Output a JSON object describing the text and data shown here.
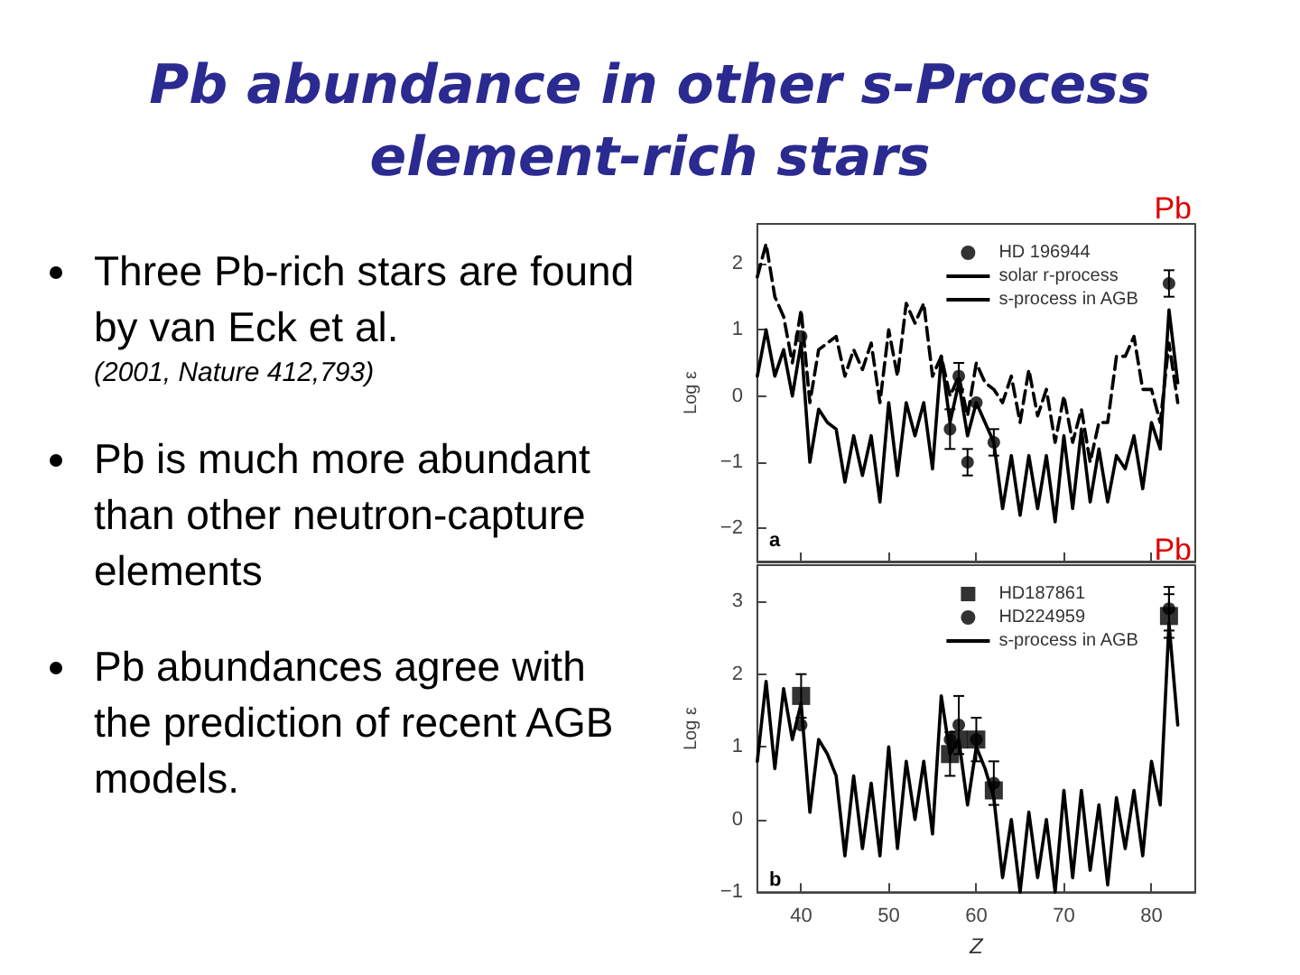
{
  "chart_data": [
    {
      "type": "line",
      "title": "Pb abundance in other s-Process element-rich stars",
      "ylabel": "Log ε",
      "annotations": [
        "Three Pb-rich stars are found by van Eck et al.",
        "(2001, Nature 412,793)",
        "Pb is much more abundant than other neutron-capture elements",
        "Pb abundances agree with the prediction of recent AGB models.",
        "a",
        "Pb"
      ],
      "x": [
        35,
        36,
        37,
        38,
        39,
        40,
        41,
        42,
        43,
        44,
        45,
        46,
        47,
        48,
        49,
        50,
        51,
        52,
        53,
        54,
        55,
        56,
        57,
        58,
        59,
        60,
        61,
        62,
        63,
        64,
        65,
        66,
        67,
        68,
        69,
        70,
        71,
        72,
        73,
        74,
        75,
        76,
        77,
        78,
        79,
        80,
        81,
        82,
        83
      ],
      "series": [
        {
          "name": "HD 196944",
          "type": "scatter",
          "marker": "circle",
          "color": "#000000",
          "x": [
            40,
            57,
            58,
            59,
            60,
            62,
            82
          ],
          "values": [
            0.9,
            -0.5,
            0.3,
            -1.0,
            -0.1,
            -0.7,
            1.7
          ],
          "errors": [
            null,
            0.3,
            0.2,
            0.2,
            null,
            0.2,
            0.2
          ]
        },
        {
          "name": "solar r-process",
          "color": "#000000",
          "line_style": "dashed",
          "values": [
            1.8,
            2.3,
            1.5,
            1.2,
            0.5,
            1.3,
            -0.1,
            0.7,
            0.8,
            0.9,
            0.3,
            0.7,
            0.4,
            0.8,
            -0.1,
            1.0,
            0.3,
            1.4,
            1.1,
            1.4,
            0.3,
            0.6,
            0.0,
            0.3,
            -0.3,
            0.5,
            0.2,
            0.1,
            -0.1,
            0.3,
            -0.4,
            0.4,
            -0.3,
            0.1,
            -0.7,
            0.0,
            -0.7,
            -0.2,
            -1.0,
            -0.4,
            -0.4,
            0.6,
            0.6,
            0.9,
            0.1,
            0.1,
            -0.4,
            0.8,
            -0.1
          ]
        },
        {
          "name": "s-process in AGB",
          "color": "#000000",
          "line_style": "solid",
          "values": [
            0.3,
            1.0,
            0.3,
            0.7,
            0.0,
            0.8,
            -1.0,
            -0.2,
            -0.4,
            -0.5,
            -1.3,
            -0.6,
            -1.2,
            -0.6,
            -1.6,
            -0.1,
            -1.2,
            -0.1,
            -0.6,
            -0.1,
            -1.1,
            0.6,
            -0.4,
            0.2,
            -0.6,
            -0.1,
            -0.4,
            -0.7,
            -1.7,
            -0.9,
            -1.8,
            -0.9,
            -1.7,
            -0.9,
            -1.9,
            -0.6,
            -1.7,
            -0.5,
            -1.6,
            -0.8,
            -1.6,
            -0.9,
            -1.1,
            -0.6,
            -1.4,
            -0.4,
            -0.8,
            1.3,
            0.2
          ]
        }
      ],
      "xlim": [
        35,
        85
      ],
      "xticks": [
        40,
        50,
        60,
        70,
        80
      ],
      "ylim": [
        -2.5,
        2.6
      ],
      "yticks": [
        -2,
        -1,
        0,
        1,
        2
      ],
      "tick_labels": "y",
      "grid": false,
      "legend": "top right",
      "marker": "none"
    },
    {
      "type": "line",
      "xlabel": "Z",
      "ylabel": "Log ε",
      "annotations": [
        "b",
        "Pb"
      ],
      "x": [
        35,
        36,
        37,
        38,
        39,
        40,
        41,
        42,
        43,
        44,
        45,
        46,
        47,
        48,
        49,
        50,
        51,
        52,
        53,
        54,
        55,
        56,
        57,
        58,
        59,
        60,
        61,
        62,
        63,
        64,
        65,
        66,
        67,
        68,
        69,
        70,
        71,
        72,
        73,
        74,
        75,
        76,
        77,
        78,
        79,
        80,
        81,
        82,
        83
      ],
      "series": [
        {
          "name": "HD187861",
          "type": "scatter",
          "marker": "square",
          "color": "#000000",
          "x": [
            40,
            57,
            58,
            60,
            62,
            82
          ],
          "values": [
            1.7,
            0.9,
            1.1,
            1.1,
            0.4,
            2.8
          ],
          "errors": [
            0.3,
            0.3,
            null,
            null,
            null,
            0.3
          ]
        },
        {
          "name": "HD224959",
          "type": "scatter",
          "marker": "circle",
          "color": "#000000",
          "x": [
            40,
            57,
            58,
            60,
            62,
            82
          ],
          "values": [
            1.3,
            1.1,
            1.3,
            1.1,
            0.5,
            2.9
          ],
          "errors": [
            null,
            null,
            0.4,
            0.3,
            0.3,
            0.3
          ]
        },
        {
          "name": "s-process in AGB",
          "color": "#000000",
          "line_style": "solid",
          "values": [
            0.8,
            1.9,
            0.7,
            1.8,
            1.1,
            1.6,
            0.1,
            1.1,
            0.9,
            0.6,
            -0.5,
            0.6,
            -0.4,
            0.5,
            -0.5,
            1.0,
            -0.4,
            0.8,
            0.0,
            0.8,
            -0.2,
            1.7,
            0.9,
            1.1,
            0.2,
            1.0,
            0.7,
            0.3,
            -0.8,
            0.0,
            -1.0,
            0.1,
            -0.8,
            0.0,
            -1.0,
            0.4,
            -0.8,
            0.4,
            -0.7,
            0.2,
            -0.9,
            0.3,
            -0.4,
            0.4,
            -0.5,
            0.8,
            0.2,
            2.7,
            1.3
          ]
        }
      ],
      "xlim": [
        35,
        85
      ],
      "xticks": [
        40,
        50,
        60,
        70,
        80
      ],
      "ylim": [
        -1,
        3.5
      ],
      "yticks": [
        -1,
        0,
        1,
        2,
        3
      ],
      "grid": false,
      "legend": "top right",
      "marker": "none"
    }
  ]
}
